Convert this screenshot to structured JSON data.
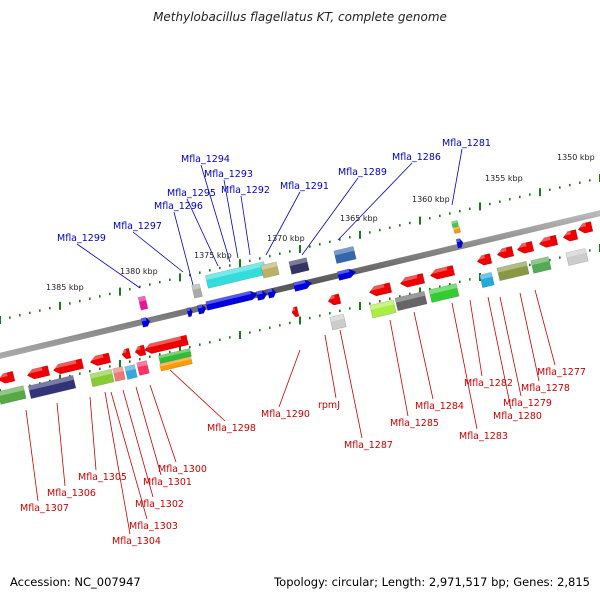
{
  "title": "Methylobacillus flagellatus KT, complete genome",
  "footer": {
    "accession": "Accession: NC_007947",
    "summary": "Topology: circular; Length: 2,971,517 bp; Genes: 2,815"
  },
  "colors": {
    "top_label": "#0000cc",
    "bottom_label": "#cc0000",
    "backbone": "#777777",
    "tick": "#1a7a1a"
  },
  "scale": {
    "outer": [
      "1350 kbp",
      "1355 kbp",
      "1385 kbp"
    ],
    "inner": [
      "1360 kbp",
      "1365 kbp",
      "1370 kbp",
      "1375 kbp",
      "1380 kbp"
    ]
  },
  "top_labels": [
    "Mfla_1281",
    "Mfla_1286",
    "Mfla_1289",
    "Mfla_1291",
    "Mfla_1292",
    "Mfla_1293",
    "Mfla_1294",
    "Mfla_1295",
    "Mfla_1296",
    "Mfla_1297",
    "Mfla_1299"
  ],
  "bottom_labels": [
    "Mfla_1277",
    "Mfla_1278",
    "Mfla_1279",
    "Mfla_1280",
    "Mfla_1282",
    "Mfla_1283",
    "Mfla_1284",
    "Mfla_1285",
    "Mfla_1287",
    "rpmJ",
    "Mfla_1290",
    "Mfla_1298",
    "Mfla_1300",
    "Mfla_1301",
    "Mfla_1302",
    "Mfla_1303",
    "Mfla_1304",
    "Mfla_1305",
    "Mfla_1306",
    "Mfla_1307"
  ]
}
